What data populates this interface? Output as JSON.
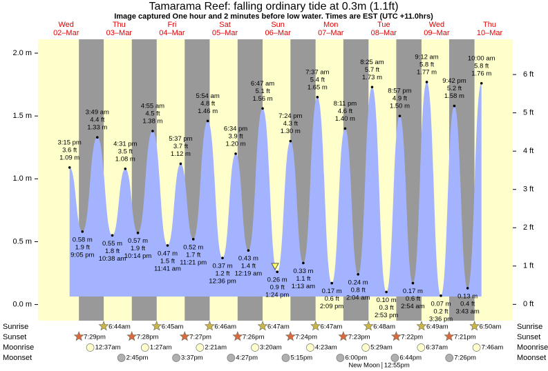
{
  "chart_data": {
    "type": "tide",
    "title": "Tamarama Reef: falling  ordinary tide at 0.3m (1.1ft)",
    "subtitle": "Image captured One hour and 2 minutes before low water. Times are EST (UTC +11.0hrs)",
    "days": [
      "Wed",
      "Thu",
      "Fri",
      "Sat",
      "Sun",
      "Mon",
      "Tue",
      "Wed",
      "Thu"
    ],
    "dates": [
      "02–Mar",
      "03–Mar",
      "04–Mar",
      "05–Mar",
      "06–Mar",
      "07–Mar",
      "08–Mar",
      "09–Mar",
      "10–Mar"
    ],
    "ylim": [
      -0.09,
      2.11
    ],
    "yticks": [
      {
        "value": 0,
        "label": "0.0 m"
      },
      {
        "value": 0.5,
        "label": "0.5 m"
      },
      {
        "value": 1,
        "label": "1.0 m"
      },
      {
        "value": 1.5,
        "label": "1.5 m"
      },
      {
        "value": 2,
        "label": "2.0 m"
      }
    ],
    "y2lim": [
      -0.3,
      6.92
    ],
    "y2ticks": [
      {
        "value": 0,
        "label": "0 ft"
      },
      {
        "value": 1,
        "label": "1 ft"
      },
      {
        "value": 2,
        "label": "2 ft"
      },
      {
        "value": 3,
        "label": "3 ft"
      },
      {
        "value": 4,
        "label": "4 ft"
      },
      {
        "value": 5,
        "label": "5 ft"
      },
      {
        "value": 6,
        "label": "6 ft"
      }
    ],
    "current_height": 0.3,
    "series": [
      {
        "name": "Tide",
        "color": "#a3b3ff",
        "x": [
          "3:15 pm",
          "9:05 pm",
          "3:49 am",
          "10:38 am",
          "4:31 pm",
          "10:14 pm",
          "4:55 am",
          "11:41 am",
          "5:37 pm",
          "11:21 pm",
          "5:54 am",
          "12:36 pm",
          "6:34 pm",
          "12:19 am",
          "6:47 am",
          "1:24 pm",
          "7:24 pm",
          "1:13 am",
          "7:37 am",
          "2:09 pm",
          "8:11 pm",
          "2:04 am",
          "8:25 am",
          "2:53 pm",
          "8:57 pm",
          "2:54 am",
          "9:12 am",
          "3:36 pm",
          "9:42 pm",
          "3:43 am",
          "10:00 am"
        ],
        "values": [
          1.09,
          0.58,
          1.33,
          0.55,
          1.08,
          0.57,
          1.38,
          0.47,
          1.12,
          0.52,
          1.46,
          0.37,
          1.2,
          0.43,
          1.56,
          0.26,
          1.3,
          0.33,
          1.65,
          0.17,
          1.4,
          0.24,
          1.73,
          0.1,
          1.5,
          0.17,
          1.77,
          0.07,
          1.58,
          0.13,
          1.76
        ],
        "value_labels": [
          "1.09 m",
          "0.58 m",
          "1.33 m",
          "0.55 m",
          "1.08 m",
          "0.57 m",
          "1.38 m",
          "0.47 m",
          "1.12 m",
          "0.52 m",
          "1.46 m",
          "0.37 m",
          "1.20 m",
          "0.43 m",
          "1.56 m",
          "0.26 m",
          "1.30 m",
          "0.33 m",
          "1.65 m",
          "0.17 m",
          "1.40 m",
          "0.24 m",
          "1.73 m",
          "0.10 m",
          "1.50 m",
          "0.17 m",
          "1.77 m",
          "0.07 m",
          "1.58 m",
          "0.13 m",
          "1.76 m"
        ],
        "ft_labels": [
          "3.6 ft",
          "1.9 ft",
          "4.4 ft",
          "1.8 ft",
          "3.5 ft",
          "1.9 ft",
          "4.5 ft",
          "1.5 ft",
          "3.7 ft",
          "1.7 ft",
          "4.8 ft",
          "1.2 ft",
          "3.9 ft",
          "1.4 ft",
          "5.1 ft",
          "0.9 ft",
          "4.3 ft",
          "1.1 ft",
          "5.4 ft",
          "0.6 ft",
          "4.6 ft",
          "0.8 ft",
          "5.7 ft",
          "0.3 ft",
          "4.9 ft",
          "0.6 ft",
          "5.8 ft",
          "0.2 ft",
          "5.2 ft",
          "0.4 ft",
          "5.8 ft"
        ]
      }
    ],
    "events": [
      {
        "name": "Sunrise",
        "times": [
          null,
          "6:44am",
          "6:45am",
          "6:46am",
          "6:47am",
          "6:47am",
          "6:48am",
          "6:49am",
          "6:50am"
        ]
      },
      {
        "name": "Sunset",
        "times": [
          "7:29pm",
          "7:28pm",
          "7:27pm",
          "7:26pm",
          "7:24pm",
          "7:23pm",
          "7:22pm",
          "7:21pm",
          null
        ]
      },
      {
        "name": "Moonrise",
        "times": [
          null,
          "12:37am",
          "1:27am",
          "2:21am",
          "3:20am",
          "4:23am",
          "5:29am",
          "6:37am",
          "7:46am"
        ]
      },
      {
        "name": "Moonset",
        "times": [
          null,
          "2:45pm",
          "3:37pm",
          "4:27pm",
          "5:15pm",
          "6:00pm",
          "6:44pm",
          "7:26pm",
          null
        ]
      }
    ],
    "moon_phases": {
      "names": [
        null,
        null,
        null,
        null,
        null,
        null,
        "New Moon",
        null,
        null
      ],
      "times": [
        null,
        null,
        null,
        null,
        null,
        null,
        "12:55pm",
        null,
        null
      ]
    }
  }
}
